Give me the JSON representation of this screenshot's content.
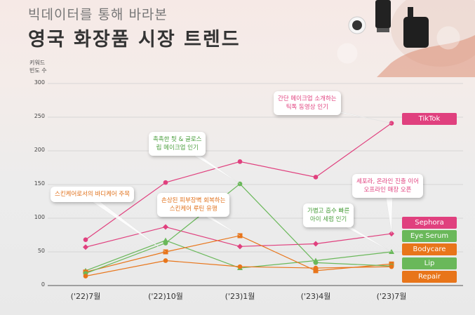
{
  "subtitle": "빅데이터를 통해 바라본",
  "title": "영국 화장품 시장 트렌드",
  "chart_data": {
    "type": "line",
    "ylabel": "키워드\n빈도 수",
    "ylim": [
      0,
      300
    ],
    "yticks": [
      0,
      50,
      100,
      150,
      200,
      250,
      300
    ],
    "categories": [
      "('22)7월",
      "('22)10월",
      "('23)1월",
      "('23)4월",
      "('23)7월"
    ],
    "series": [
      {
        "name": "TikTok",
        "color": "#e0407e",
        "values": [
          68,
          153,
          184,
          161,
          241
        ]
      },
      {
        "name": "Sephora",
        "color": "#e0407e",
        "values": [
          57,
          87,
          58,
          62,
          77
        ]
      },
      {
        "name": "Eye Serum",
        "color": "#6ab85a",
        "values": [
          22,
          67,
          26,
          37,
          50
        ]
      },
      {
        "name": "Bodycare",
        "color": "#e8751a",
        "values": [
          20,
          50,
          74,
          22,
          32
        ]
      },
      {
        "name": "Lip",
        "color": "#6ab85a",
        "values": [
          18,
          63,
          151,
          34,
          29
        ]
      },
      {
        "name": "Repair",
        "color": "#e8751a",
        "values": [
          14,
          37,
          28,
          26,
          28
        ]
      }
    ],
    "annotations": [
      {
        "id": "tiktok",
        "lines": [
          "간단 메이크업 소개하는",
          "틱톡 동영상 인기"
        ],
        "color": "#e0407e"
      },
      {
        "id": "lip",
        "lines": [
          "촉촉한 틧 & 글로스",
          "립 메이크업 인기"
        ],
        "color": "#4a9e3c"
      },
      {
        "id": "body",
        "lines": [
          "스킨케어로서의 바디케어 주목"
        ],
        "color": "#e0701a"
      },
      {
        "id": "repair",
        "lines": [
          "손상된 피부장벽 회복하는",
          "스킨케어 루틴 유행"
        ],
        "color": "#e0701a"
      },
      {
        "id": "sephora",
        "lines": [
          "세포라, 온라인 진출 이어",
          "오프라인 매장 오픈"
        ],
        "color": "#e0407e"
      },
      {
        "id": "eye",
        "lines": [
          "가볍고 흡수 빠른",
          "아이 세럼 인기"
        ],
        "color": "#4a9e3c"
      }
    ]
  }
}
